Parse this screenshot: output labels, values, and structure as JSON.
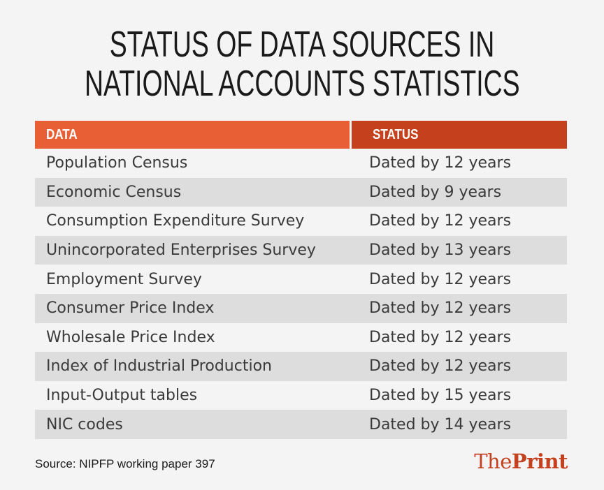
{
  "title": {
    "line1": "STATUS OF DATA SOURCES IN",
    "line2": "NATIONAL ACCOUNTS STATISTICS"
  },
  "chart_data": {
    "type": "table",
    "columns": [
      "DATA",
      "STATUS"
    ],
    "rows": [
      {
        "data": "Population Census",
        "status": "Dated by 12 years"
      },
      {
        "data": "Economic Census",
        "status": "Dated by 9 years"
      },
      {
        "data": "Consumption Expenditure Survey",
        "status": "Dated by 12 years"
      },
      {
        "data": "Unincorporated Enterprises Survey",
        "status": "Dated by 13 years"
      },
      {
        "data": "Employment Survey",
        "status": "Dated by 12 years"
      },
      {
        "data": "Consumer Price Index",
        "status": "Dated by 12 years"
      },
      {
        "data": "Wholesale Price Index",
        "status": "Dated by 12 years"
      },
      {
        "data": "Index of Industrial Production",
        "status": "Dated by 12 years"
      },
      {
        "data": "Input-Output tables",
        "status": "Dated by 15 years"
      },
      {
        "data": "NIC codes",
        "status": "Dated by 14 years"
      }
    ]
  },
  "source": "Source: NIPFP working paper 397",
  "logo": {
    "the": "The",
    "print": "Print"
  },
  "colors": {
    "header_data": "#e95f35",
    "header_status": "#c5401c",
    "row_shade": "#dddddd",
    "background": "#f4f4f4",
    "logo": "#c5401c"
  }
}
